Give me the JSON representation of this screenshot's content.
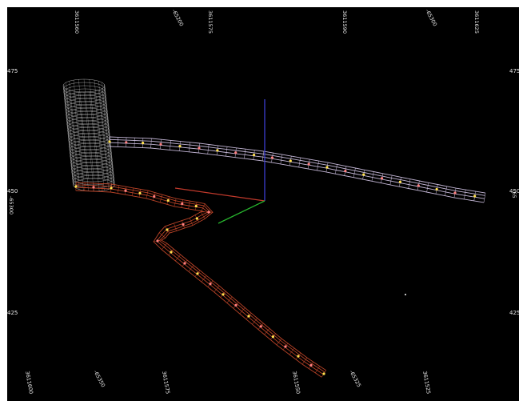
{
  "viewer": {
    "background_color": "#000000",
    "border_color": "#ffffff"
  },
  "grid_labels": {
    "top": [
      "3611560",
      "-65200",
      "3611575",
      "3611590",
      "-65300",
      "3611625"
    ],
    "bottom": [
      "3611600",
      "-65350",
      "3611575",
      "3611550",
      "-65325",
      "3611525"
    ],
    "left": [
      "475",
      "450",
      "425"
    ],
    "right": [
      "475",
      "450",
      "425"
    ],
    "left_vertical": "-65300",
    "right_vertical": "-65"
  },
  "axes": {
    "x_color": "#c0392b",
    "y_color": "#27b22d",
    "z_color": "#3b3fd0"
  },
  "objects": {
    "shaft_color": "#d8d8d8",
    "upper_drift_color": "#d6c8ea",
    "lower_drift_color": "#c9482a",
    "station_colors": [
      "#ffe14d",
      "#7fe07f",
      "#ff8080",
      "#ffffff"
    ]
  }
}
